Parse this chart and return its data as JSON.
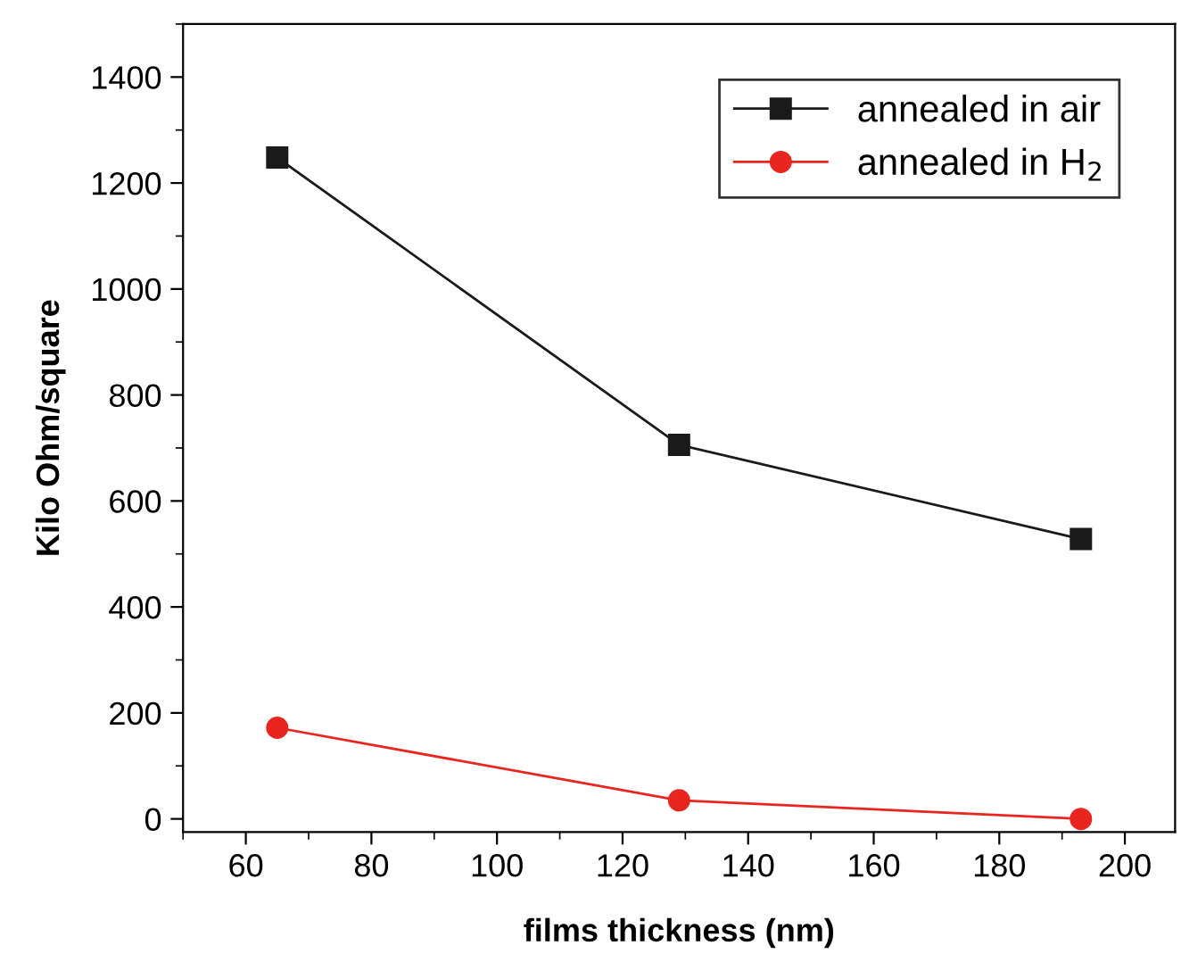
{
  "chart_data": {
    "type": "line",
    "xlabel": "films thickness (nm)",
    "ylabel": "Kilo Ohm/square",
    "x": [
      65,
      129,
      193
    ],
    "series": [
      {
        "name": "annealed in air",
        "color": "#1a1a1a",
        "marker": "square",
        "values": [
          1248,
          706,
          528
        ]
      },
      {
        "name": "annealed in H$_{2}$",
        "color": "#e8261f",
        "marker": "circle",
        "values": [
          172,
          35,
          0
        ]
      }
    ],
    "xlim": [
      50,
      208
    ],
    "xticks": [
      60,
      80,
      100,
      120,
      140,
      160,
      180,
      200
    ],
    "ylim": [
      -25,
      1500
    ],
    "yticks": [
      0,
      200,
      400,
      600,
      800,
      1000,
      1200,
      1400
    ],
    "grid": false,
    "legend": "top right",
    "line_style": "solid"
  }
}
